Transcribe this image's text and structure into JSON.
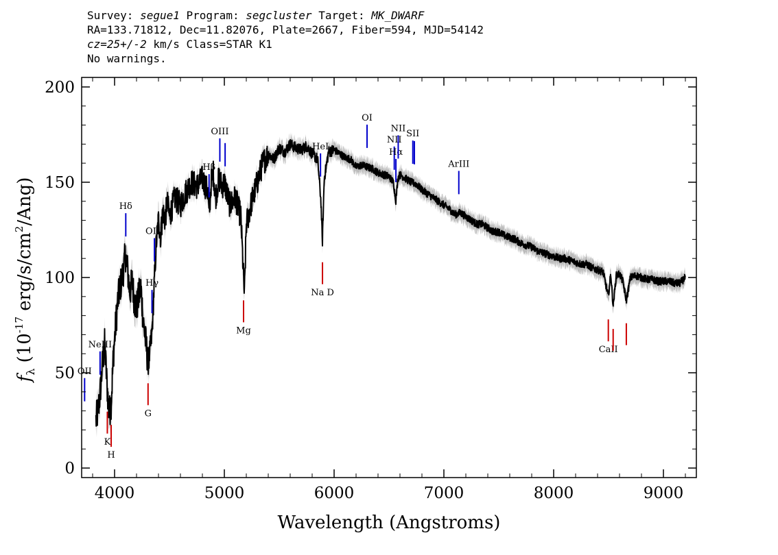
{
  "header": {
    "line1": {
      "survey_label": "Survey:",
      "survey": "segue1",
      "program_label": "Program:",
      "program": "segcluster",
      "target_label": "Target:",
      "target": "MK_DWARF"
    },
    "line2": "RA=133.71812, Dec=11.82076, Plate=2667, Fiber=594, MJD=54142",
    "line3": {
      "cz": "cz=25+/-2",
      "units_class": " km/s Class=STAR K1"
    },
    "line4": "No warnings."
  },
  "chart_data": {
    "type": "line",
    "xlabel": "Wavelength (Angstroms)",
    "ylabel": "f_λ (10^-17 erg/s/cm^2/Ang)",
    "xlim": [
      3700,
      9300
    ],
    "ylim": [
      -5,
      205
    ],
    "x_ticks": [
      4000,
      5000,
      6000,
      7000,
      8000,
      9000
    ],
    "y_ticks": [
      0,
      50,
      100,
      150,
      200
    ],
    "colors": {
      "spectrum": "#000000",
      "error_band": "#bbbbbb",
      "emission": "#0000cc",
      "absorption": "#cc0000"
    },
    "series": [
      {
        "x": [
          3830,
          3850,
          3870,
          3890,
          3910,
          3930,
          3950,
          3970,
          3990,
          4010,
          4030,
          4050,
          4070,
          4090,
          4101,
          4120,
          4140,
          4160,
          4180,
          4200,
          4220,
          4240,
          4260,
          4280,
          4300,
          4310,
          4320,
          4340,
          4360,
          4380,
          4400,
          4420,
          4440,
          4460,
          4480,
          4500,
          4550,
          4600,
          4650,
          4700,
          4750,
          4800,
          4850,
          4861,
          4880,
          4900,
          4920,
          4950,
          4980,
          5000,
          5050,
          5100,
          5150,
          5175,
          5183,
          5200,
          5250,
          5300,
          5350,
          5400,
          5450,
          5500,
          5550,
          5600,
          5650,
          5700,
          5750,
          5800,
          5850,
          5880,
          5893,
          5910,
          5950,
          6000,
          6050,
          6100,
          6150,
          6200,
          6250,
          6300,
          6350,
          6400,
          6450,
          6500,
          6540,
          6563,
          6580,
          6600,
          6650,
          6700,
          6750,
          6800,
          6850,
          6900,
          6950,
          7000,
          7050,
          7100,
          7150,
          7200,
          7250,
          7300,
          7350,
          7400,
          7450,
          7500,
          7550,
          7600,
          7650,
          7700,
          7750,
          7800,
          7850,
          7900,
          7950,
          8000,
          8050,
          8100,
          8150,
          8200,
          8250,
          8300,
          8350,
          8400,
          8450,
          8498,
          8520,
          8542,
          8570,
          8600,
          8630,
          8662,
          8700,
          8750,
          8800,
          8850,
          8900,
          8950,
          9000,
          9050,
          9100,
          9150,
          9200
        ],
        "y": [
          25,
          30,
          40,
          55,
          65,
          45,
          28,
          35,
          60,
          75,
          88,
          95,
          100,
          108,
          112,
          103,
          92,
          98,
          88,
          84,
          90,
          95,
          78,
          68,
          58,
          55,
          60,
          70,
          95,
          118,
          130,
          122,
          135,
          130,
          140,
          132,
          142,
          138,
          145,
          150,
          148,
          152,
          145,
          132,
          150,
          155,
          142,
          152,
          148,
          150,
          138,
          142,
          132,
          100,
          90,
          128,
          140,
          150,
          160,
          165,
          162,
          168,
          166,
          170,
          168,
          167,
          169,
          165,
          162,
          140,
          118,
          152,
          166,
          167,
          165,
          163,
          162,
          158,
          159,
          158,
          157,
          155,
          154,
          153,
          150,
          140,
          152,
          154,
          152,
          150,
          149,
          146,
          144,
          142,
          140,
          138,
          136,
          133,
          134,
          132,
          130,
          128,
          128,
          126,
          124,
          124,
          122,
          121,
          120,
          118,
          117,
          116,
          114,
          113,
          112,
          111,
          110,
          110,
          109,
          108,
          107,
          107,
          105,
          104,
          103,
          90,
          102,
          85,
          101,
          102,
          98,
          88,
          100,
          101,
          100,
          99,
          99,
          98,
          98,
          98,
          97,
          97,
          100
        ]
      }
    ],
    "emission_lines": [
      {
        "label": "OII",
        "wavelength": 3727
      },
      {
        "label": "NeIII",
        "wavelength": 3868
      },
      {
        "label": "Hδ",
        "wavelength": 4102
      },
      {
        "label": "Hγ",
        "wavelength": 4341
      },
      {
        "label": "OIII",
        "wavelength": 4363
      },
      {
        "label": "Hβ",
        "wavelength": 4861
      },
      {
        "label": "OIII",
        "wavelength": 4959
      },
      {
        "label": "",
        "wavelength": 5007
      },
      {
        "label": "HeI",
        "wavelength": 5876
      },
      {
        "label": "OI",
        "wavelength": 6300
      },
      {
        "label": "NII",
        "wavelength": 6548
      },
      {
        "label": "Hα",
        "wavelength": 6563
      },
      {
        "label": "NII",
        "wavelength": 6584
      },
      {
        "label": "SII",
        "wavelength": 6717
      },
      {
        "label": "",
        "wavelength": 6731
      },
      {
        "label": "ArIII",
        "wavelength": 7136
      }
    ],
    "absorption_lines": [
      {
        "label": "K",
        "wavelength": 3934
      },
      {
        "label": "H",
        "wavelength": 3969
      },
      {
        "label": "G",
        "wavelength": 4305
      },
      {
        "label": "Mg",
        "wavelength": 5175
      },
      {
        "label": "Na D",
        "wavelength": 5894
      },
      {
        "label": "CaII",
        "wavelength": 8498
      },
      {
        "label": "",
        "wavelength": 8542
      },
      {
        "label": "",
        "wavelength": 8662
      }
    ]
  }
}
